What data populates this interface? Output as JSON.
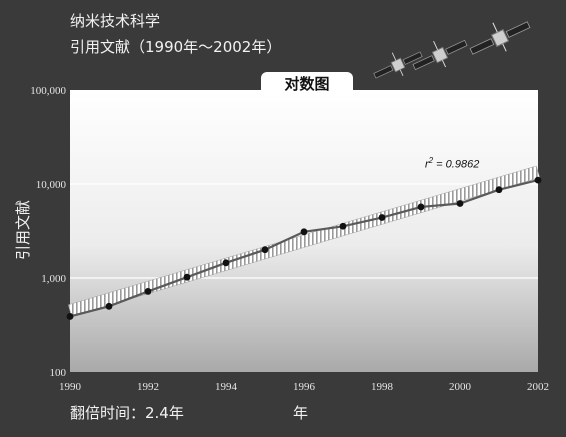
{
  "header": {
    "line1": "纳米技术科学",
    "line2": "引用文献（1990年～2002年）"
  },
  "tab": {
    "label": "对数图"
  },
  "footer": {
    "doubling_time": "翻倍时间：2.4年"
  },
  "chart_data": {
    "type": "line",
    "title": "",
    "xlabel": "年",
    "ylabel": "引用文献",
    "yscale": "log",
    "xlim": [
      1990,
      2002
    ],
    "ylim": [
      100,
      100000
    ],
    "x_ticks": [
      "1990",
      "1992",
      "1994",
      "1996",
      "1998",
      "2000",
      "2002"
    ],
    "y_ticks": [
      "100",
      "1,000",
      "10,000",
      "100,000"
    ],
    "y_tick_values": [
      100,
      1000,
      10000,
      100000
    ],
    "grid": true,
    "series": [
      {
        "x": [
          1990,
          1991,
          1992,
          1993,
          1994,
          1995,
          1996,
          1997,
          1998,
          1999,
          2000,
          2001,
          2002
        ],
        "values": [
          390,
          500,
          720,
          1020,
          1450,
          2000,
          3100,
          3550,
          4400,
          5700,
          6200,
          8700,
          11000
        ]
      }
    ],
    "trendline": {
      "x": [
        1990,
        2002
      ],
      "values": [
        450,
        13500
      ],
      "annotation": "r 2 = 0.9862"
    },
    "colors": {
      "line": "#5a5a5a",
      "marker": "#111111",
      "trend": "#ffffff",
      "trend_edge": "#8a8a8a"
    }
  }
}
